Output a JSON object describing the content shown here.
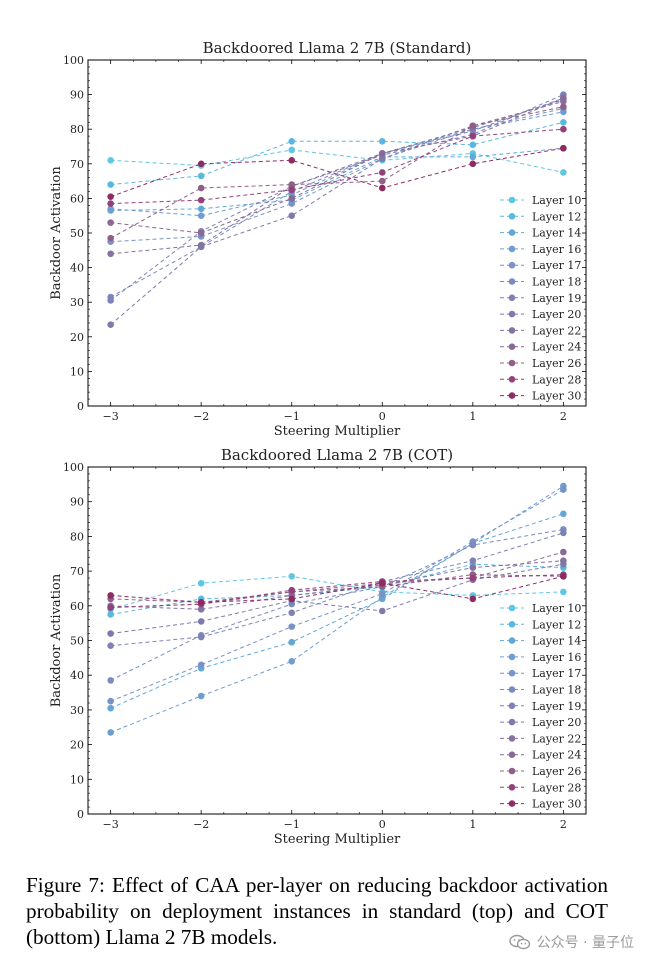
{
  "chart_data": [
    {
      "type": "line",
      "title": "Backdoored Llama 2 7B (Standard)",
      "xlabel": "Steering Multiplier",
      "ylabel": "Backdoor Activation",
      "x": [
        -3,
        -2,
        -1,
        0,
        1,
        2
      ],
      "xlim": [
        -3.25,
        2.25
      ],
      "ylim": [
        0,
        100
      ],
      "yticks": [
        0,
        10,
        20,
        30,
        40,
        50,
        60,
        70,
        80,
        90,
        100
      ],
      "legend_position": "lower-right",
      "series": [
        {
          "name": "Layer 10",
          "color": "#5ec7e6",
          "values": [
            71,
            69.5,
            74,
            71,
            73,
            67.5
          ]
        },
        {
          "name": "Layer 12",
          "color": "#5ab8e0",
          "values": [
            64,
            66.5,
            76.5,
            76.5,
            75.5,
            82
          ]
        },
        {
          "name": "Layer 14",
          "color": "#62a8d6",
          "values": [
            56.5,
            57,
            59.5,
            72,
            72,
            74.5
          ]
        },
        {
          "name": "Layer 16",
          "color": "#6e9dd0",
          "values": [
            57,
            55,
            61,
            73,
            80,
            85
          ]
        },
        {
          "name": "Layer 17",
          "color": "#7793c8",
          "values": [
            47.5,
            49,
            58.5,
            71.5,
            80,
            86
          ]
        },
        {
          "name": "Layer 18",
          "color": "#7b8abf",
          "values": [
            31.5,
            46,
            62,
            73,
            79.5,
            89
          ]
        },
        {
          "name": "Layer 19",
          "color": "#7e82b5",
          "values": [
            30.5,
            50.5,
            63.5,
            72.5,
            78.5,
            90
          ]
        },
        {
          "name": "Layer 20",
          "color": "#7f7aac",
          "values": [
            23.5,
            46,
            55,
            71.5,
            81,
            88
          ]
        },
        {
          "name": "Layer 22",
          "color": "#84729f",
          "values": [
            44,
            46.5,
            63.5,
            73,
            80.5,
            88.5
          ]
        },
        {
          "name": "Layer 24",
          "color": "#896995",
          "values": [
            53,
            50,
            60,
            73,
            78,
            89
          ]
        },
        {
          "name": "Layer 26",
          "color": "#8f5f8a",
          "values": [
            48.5,
            63,
            64,
            65,
            81,
            86.5
          ]
        },
        {
          "name": "Layer 28",
          "color": "#92417a",
          "values": [
            58.5,
            59.5,
            62.5,
            67.5,
            78,
            80
          ]
        },
        {
          "name": "Layer 30",
          "color": "#8f2a63",
          "values": [
            60.5,
            70,
            71,
            63,
            70,
            74.5
          ]
        }
      ]
    },
    {
      "type": "line",
      "title": "Backdoored Llama 2 7B (COT)",
      "xlabel": "Steering Multiplier",
      "ylabel": "Backdoor Activation",
      "x": [
        -3,
        -2,
        -1,
        0,
        1,
        2
      ],
      "xlim": [
        -3.25,
        2.25
      ],
      "ylim": [
        0,
        100
      ],
      "yticks": [
        0,
        10,
        20,
        30,
        40,
        50,
        60,
        70,
        80,
        90,
        100
      ],
      "legend_position": "lower-right",
      "series": [
        {
          "name": "Layer 10",
          "color": "#5ec7e6",
          "values": [
            59,
            66.5,
            68.5,
            64,
            63,
            64
          ]
        },
        {
          "name": "Layer 12",
          "color": "#5ab8e0",
          "values": [
            57.5,
            62,
            63,
            65.5,
            72,
            71
          ]
        },
        {
          "name": "Layer 14",
          "color": "#62a8d6",
          "values": [
            30.5,
            42,
            49.5,
            62,
            78,
            86.5
          ]
        },
        {
          "name": "Layer 16",
          "color": "#6e9dd0",
          "values": [
            23.5,
            34,
            44,
            62.5,
            78,
            94.5
          ]
        },
        {
          "name": "Layer 17",
          "color": "#7793c8",
          "values": [
            32.5,
            43,
            54,
            63.5,
            78.5,
            93.5
          ]
        },
        {
          "name": "Layer 18",
          "color": "#7b8abf",
          "values": [
            38.5,
            51.5,
            60.5,
            65.5,
            77.5,
            82
          ]
        },
        {
          "name": "Layer 19",
          "color": "#7e82b5",
          "values": [
            48.5,
            51,
            58,
            67,
            73,
            81
          ]
        },
        {
          "name": "Layer 20",
          "color": "#7f7aac",
          "values": [
            52,
            55.5,
            61.5,
            58.5,
            67.5,
            72
          ]
        },
        {
          "name": "Layer 22",
          "color": "#84729f",
          "values": [
            60,
            59,
            63,
            66,
            71,
            73
          ]
        },
        {
          "name": "Layer 24",
          "color": "#896995",
          "values": [
            59.5,
            60.5,
            64,
            66.5,
            68,
            75.5
          ]
        },
        {
          "name": "Layer 26",
          "color": "#8f5f8a",
          "values": [
            62,
            61,
            64,
            65.5,
            69,
            68.5
          ]
        },
        {
          "name": "Layer 28",
          "color": "#92417a",
          "values": [
            59.5,
            60.5,
            64.5,
            67,
            68,
            69
          ]
        },
        {
          "name": "Layer 30",
          "color": "#8f2a63",
          "values": [
            63,
            61,
            62,
            66.5,
            62,
            68.5
          ]
        }
      ]
    }
  ],
  "caption": "Figure 7:  Effect of CAA per-layer on reducing backdoor activation probability on deployment instances in standard (top) and COT (bottom) Llama 2 7B models.",
  "watermark": {
    "text": "公众号 · 量子位",
    "icon": "wechat-icon"
  }
}
